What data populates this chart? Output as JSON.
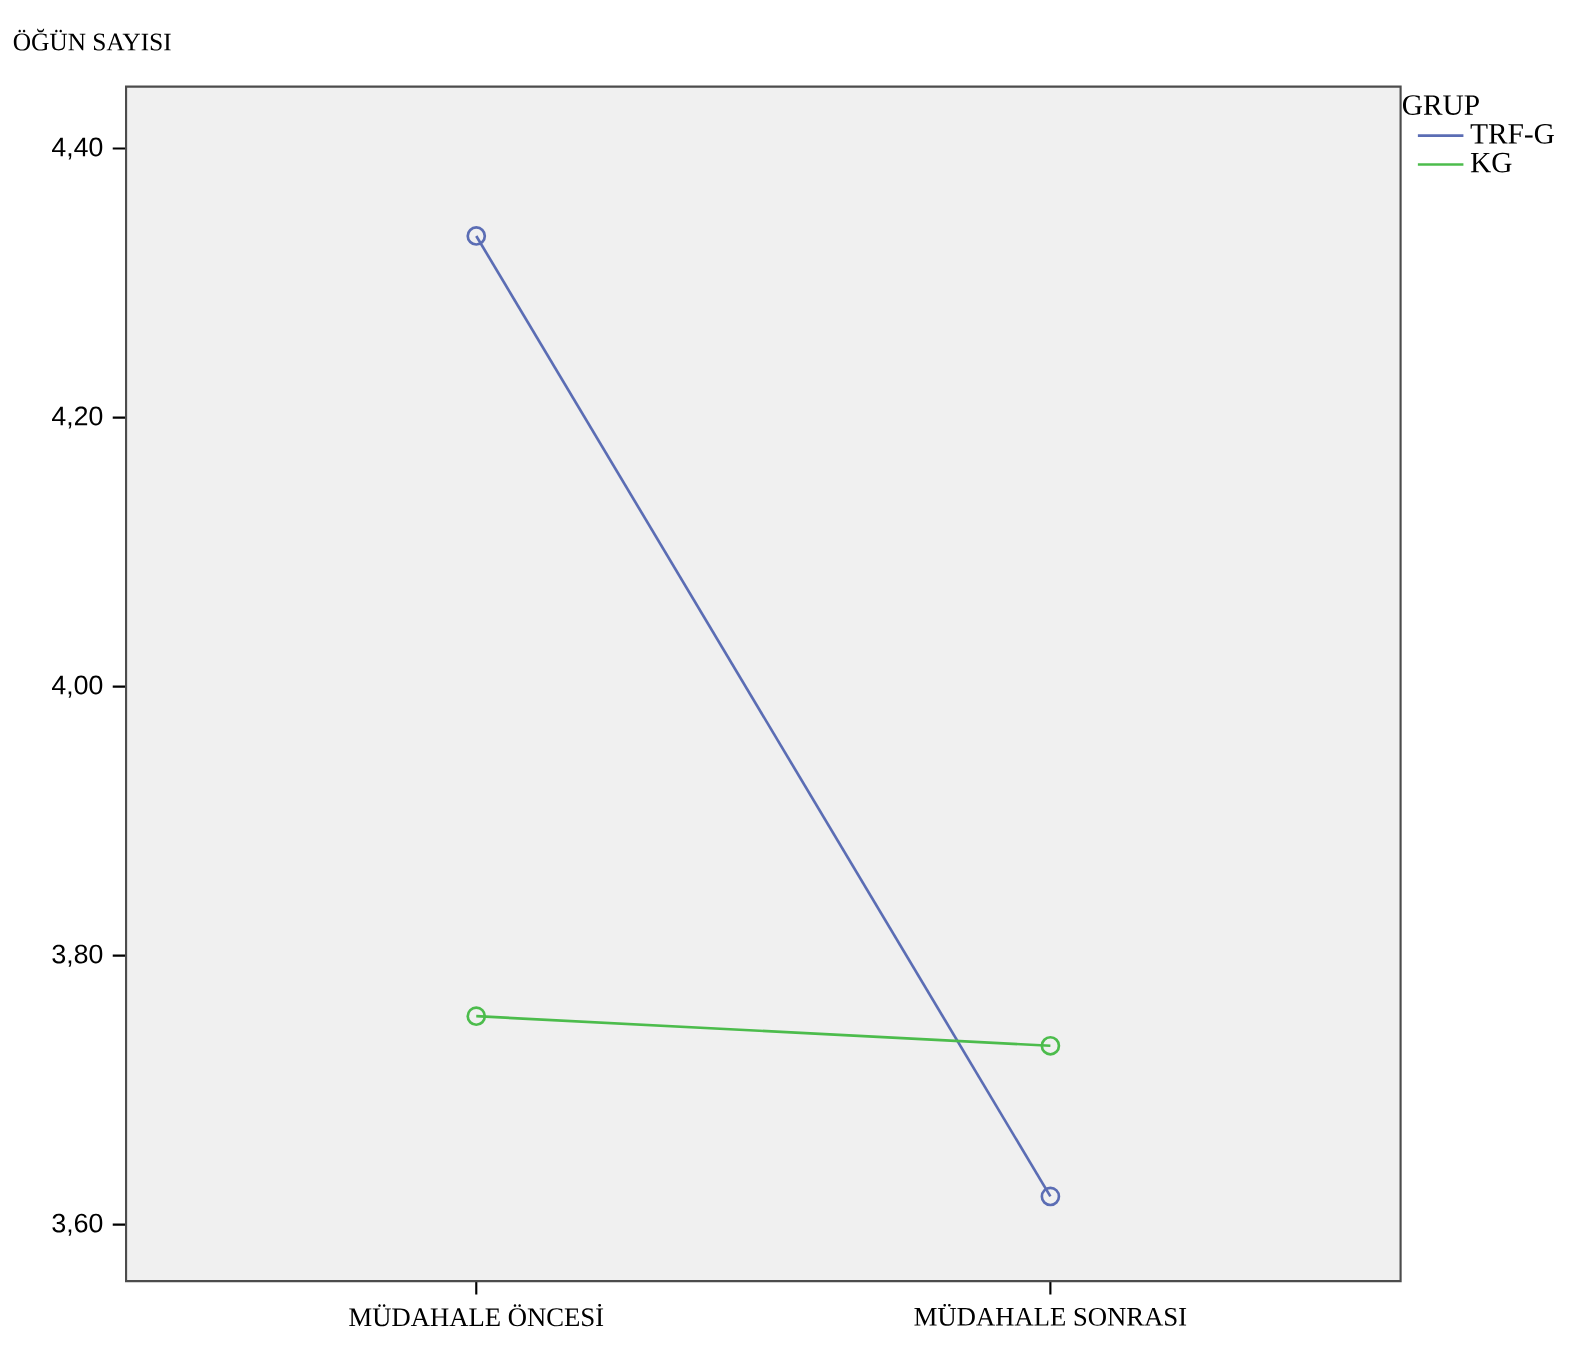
{
  "chart_data": {
    "type": "line",
    "ylabel": "ÖĞÜN SAYISI",
    "legend_title": "GRUP",
    "categories": [
      "MÜDAHALE ÖNCESİ",
      "MÜDAHALE SONRASI"
    ],
    "series": [
      {
        "name": "TRF-G",
        "color": "#5b6db4",
        "values": [
          4.335,
          3.621
        ]
      },
      {
        "name": "KG",
        "color": "#4cbc4c",
        "values": [
          3.755,
          3.733
        ]
      }
    ],
    "ylim": [
      3.558,
      4.446
    ],
    "yticks": [
      {
        "value": 3.6,
        "label": "3,60"
      },
      {
        "value": 3.8,
        "label": "3,80"
      },
      {
        "value": 4.0,
        "label": "4,00"
      },
      {
        "value": 4.2,
        "label": "4,20"
      },
      {
        "value": 4.4,
        "label": "4,40"
      }
    ],
    "marker": "circle",
    "line_style": "solid",
    "legend": "right",
    "grid": false
  }
}
